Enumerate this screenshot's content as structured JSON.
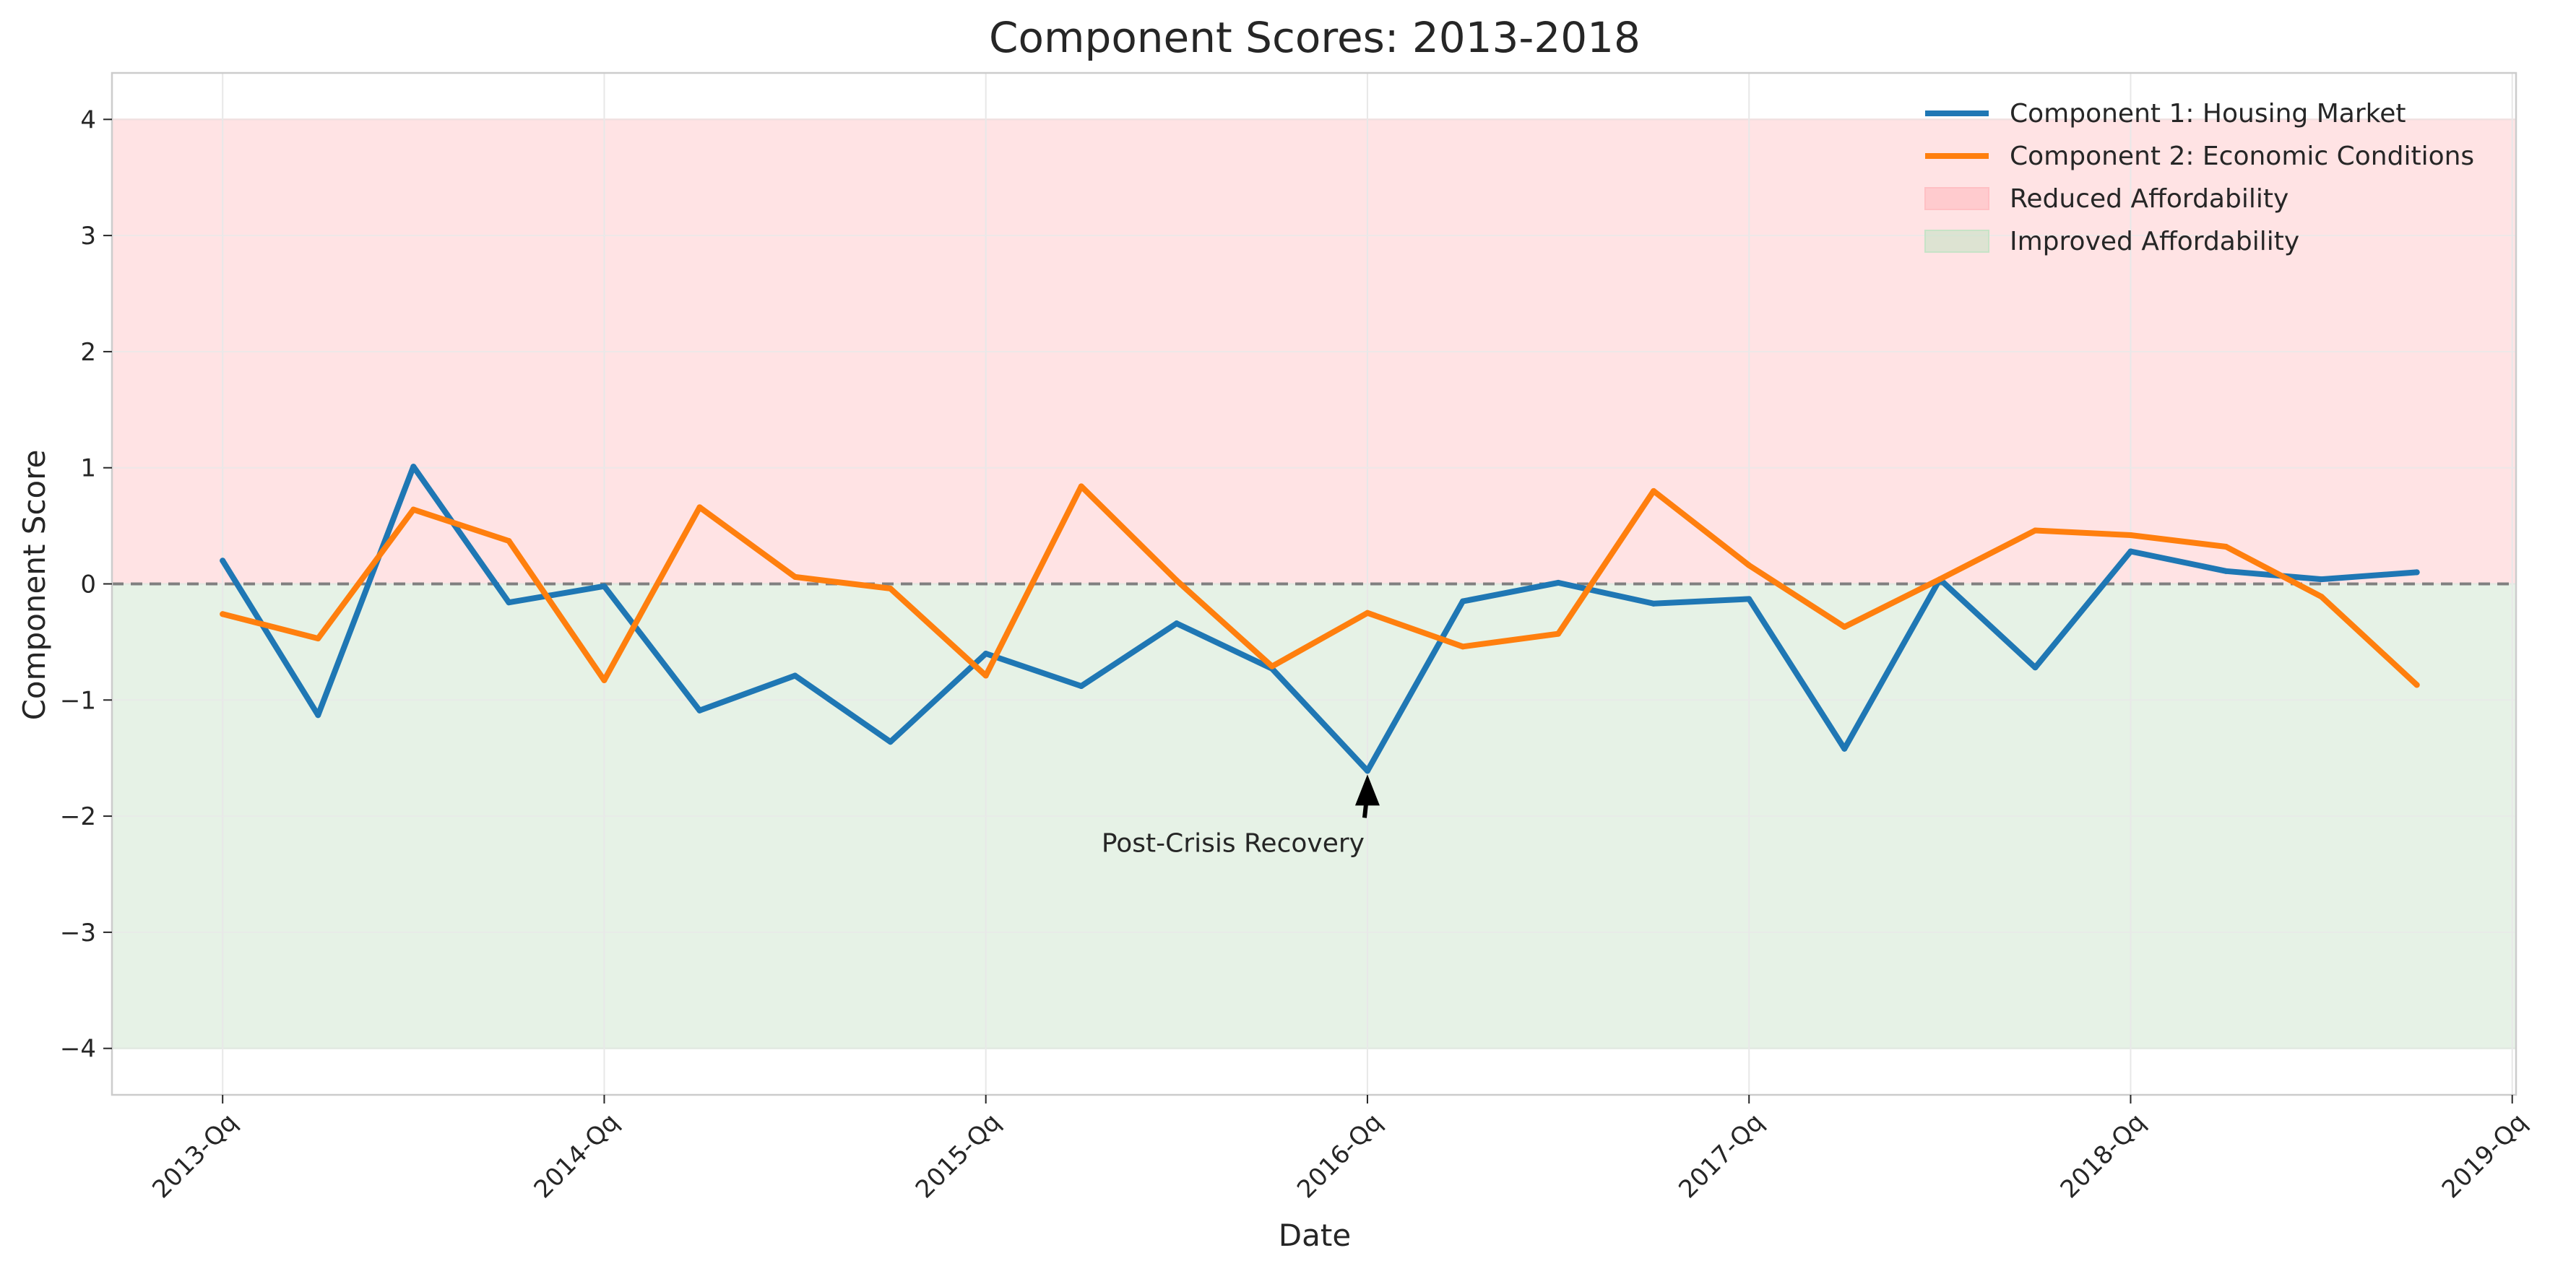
{
  "chart_data": {
    "type": "line",
    "title": "Component Scores: 2013-2018",
    "xlabel": "Date",
    "ylabel": "Component Score",
    "x_tick_labels": [
      "2013-Qq",
      "2014-Qq",
      "2015-Qq",
      "2016-Qq",
      "2017-Qq",
      "2018-Qq",
      "2019-Qq"
    ],
    "y_ticks": [
      -4,
      -3,
      -2,
      -1,
      0,
      1,
      2,
      3,
      4
    ],
    "y_tick_labels": [
      "−4",
      "−3",
      "−2",
      "−1",
      "0",
      "1",
      "2",
      "3",
      "4"
    ],
    "xlim": [
      2012.71,
      2019.01
    ],
    "ylim": [
      -4.4,
      4.4
    ],
    "grid": true,
    "legend_position": "top-right",
    "x": [
      2013.0,
      2013.25,
      2013.5,
      2013.75,
      2014.0,
      2014.25,
      2014.5,
      2014.75,
      2015.0,
      2015.25,
      2015.5,
      2015.75,
      2016.0,
      2016.25,
      2016.5,
      2016.75,
      2017.0,
      2017.25,
      2017.5,
      2017.75,
      2018.0,
      2018.25,
      2018.5,
      2018.75
    ],
    "series": [
      {
        "name": "Component 1: Housing Market",
        "color": "#1f77b4",
        "values": [
          0.2,
          -1.13,
          1.01,
          -0.16,
          -0.02,
          -1.09,
          -0.79,
          -1.36,
          -0.6,
          -0.88,
          -0.34,
          -0.73,
          -1.61,
          -0.15,
          0.01,
          -0.17,
          -0.13,
          -1.42,
          0.04,
          -0.72,
          0.28,
          0.11,
          0.04,
          0.1
        ]
      },
      {
        "name": "Component 2: Economic Conditions",
        "color": "#ff7f0e",
        "values": [
          -0.26,
          -0.47,
          0.64,
          0.37,
          -0.83,
          0.66,
          0.06,
          -0.04,
          -0.79,
          0.84,
          0.03,
          -0.71,
          -0.25,
          -0.54,
          -0.43,
          0.8,
          0.16,
          -0.37,
          0.04,
          0.46,
          0.42,
          0.32,
          -0.11,
          -0.87
        ]
      }
    ],
    "bands": [
      {
        "name": "Reduced Affordability",
        "range": [
          0,
          4
        ],
        "color": "#ffc0c4"
      },
      {
        "name": "Improved Affordability",
        "range": [
          -4,
          0
        ],
        "color": "#c7e3c7"
      }
    ],
    "reference_line": {
      "y": 0,
      "style": "dashed",
      "color": "#808080"
    },
    "annotation": {
      "text": "Post-Crisis Recovery",
      "x": 2016.0,
      "y": -1.61
    },
    "colors": {
      "axes_edge": "#cccccc",
      "grid": "#e8e8e8",
      "text": "#262626"
    }
  }
}
